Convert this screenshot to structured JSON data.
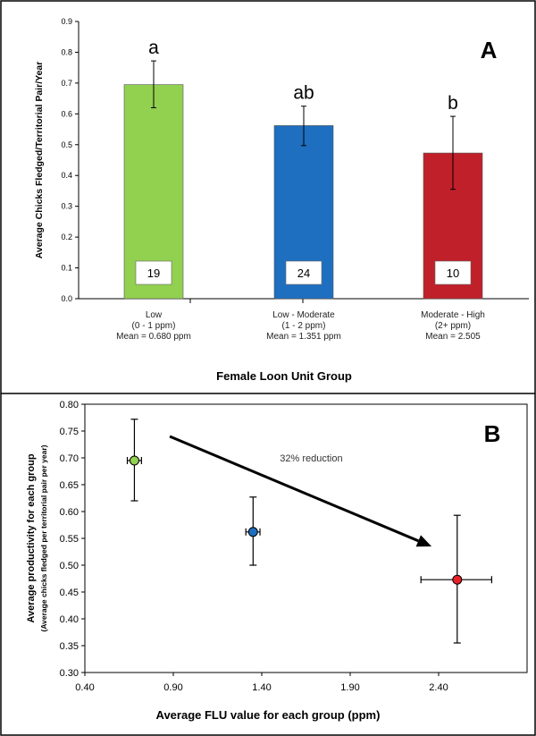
{
  "chart_data": [
    {
      "panel_label": "A",
      "type": "bar",
      "ylabel": "Average Chicks Fledged/Territorial Pair/Year",
      "xlabel": "Female Loon Unit Group",
      "ylim": [
        0,
        0.9
      ],
      "yticks": [
        "0.0",
        "0.1",
        "0.2",
        "0.3",
        "0.4",
        "0.5",
        "0.6",
        "0.7",
        "0.8",
        "0.9"
      ],
      "grid": false,
      "bars": [
        {
          "label_lines": [
            "Low",
            "(0 - 1 ppm)",
            "Mean = 0.680 ppm"
          ],
          "value": 0.695,
          "err_low": 0.62,
          "err_high": 0.772,
          "sig_letter": "a",
          "n": "19",
          "color": "#92d050"
        },
        {
          "label_lines": [
            "Low - Moderate",
            "(1 - 2 ppm)",
            "Mean = 1.351 ppm"
          ],
          "value": 0.562,
          "err_low": 0.497,
          "err_high": 0.625,
          "sig_letter": "ab",
          "n": "24",
          "color": "#1f6fc0"
        },
        {
          "label_lines": [
            "Moderate - High",
            "(2+ ppm)",
            "Mean = 2.505"
          ],
          "value": 0.473,
          "err_low": 0.355,
          "err_high": 0.592,
          "sig_letter": "b",
          "n": "10",
          "color": "#c0202a"
        }
      ]
    },
    {
      "panel_label": "B",
      "type": "scatter",
      "ylabel_lines": [
        "Average productivity for each group",
        "(Average chicks fledged per territorial pair per year)"
      ],
      "xlabel": "Average FLU value for each group (ppm)",
      "xlim": [
        0.4,
        2.9
      ],
      "ylim": [
        0.3,
        0.8
      ],
      "xticks": [
        "0.40",
        "0.90",
        "1.40",
        "1.90",
        "2.40"
      ],
      "yticks": [
        "0.30",
        "0.35",
        "0.40",
        "0.45",
        "0.50",
        "0.55",
        "0.60",
        "0.65",
        "0.70",
        "0.75",
        "0.80"
      ],
      "grid": false,
      "points": [
        {
          "x": 0.68,
          "y": 0.695,
          "x_err_low": 0.64,
          "x_err_high": 0.72,
          "y_err_low": 0.62,
          "y_err_high": 0.772,
          "color": "#92d050"
        },
        {
          "x": 1.351,
          "y": 0.562,
          "x_err_low": 1.31,
          "x_err_high": 1.39,
          "y_err_low": 0.5,
          "y_err_high": 0.627,
          "color": "#1f6fc0"
        },
        {
          "x": 2.505,
          "y": 0.473,
          "x_err_low": 2.3,
          "x_err_high": 2.7,
          "y_err_low": 0.355,
          "y_err_high": 0.593,
          "color": "#e8202a"
        }
      ],
      "annotation": {
        "text": "32% reduction",
        "arrow_from": {
          "x": 0.88,
          "y": 0.74
        },
        "arrow_to": {
          "x": 2.36,
          "y": 0.535
        },
        "text_at": {
          "x": 1.68,
          "y": 0.7
        }
      }
    }
  ]
}
